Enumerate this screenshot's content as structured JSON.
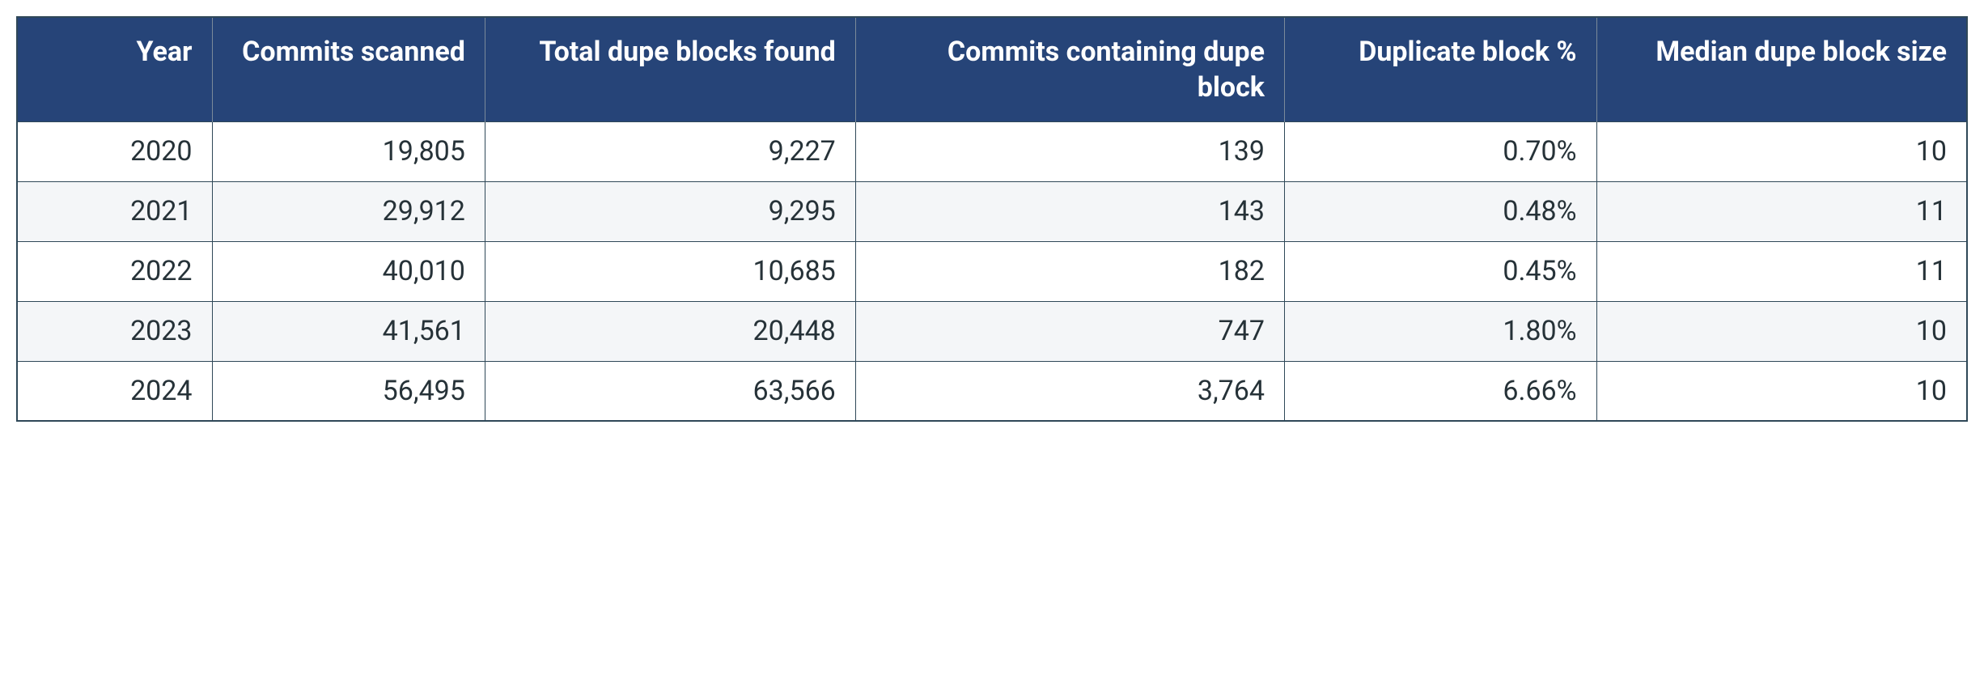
{
  "table": {
    "type": "table",
    "header_bg": "#264478",
    "header_text_color": "#ffffff",
    "header_fontsize": 34,
    "header_fontweight": 700,
    "body_text_color": "#263238",
    "body_fontsize": 34,
    "row_bg_odd": "#ffffff",
    "row_bg_even": "#f4f6f8",
    "border_color": "#2f4858",
    "header_divider_color": "#7b8a9a",
    "border_width": 2,
    "columns": [
      {
        "label": "Year",
        "width_pct": 10
      },
      {
        "label": "Commits scanned",
        "width_pct": 14
      },
      {
        "label": "Total dupe blocks found",
        "width_pct": 19
      },
      {
        "label": "Commits containing dupe block",
        "width_pct": 22
      },
      {
        "label": "Duplicate block %",
        "width_pct": 16
      },
      {
        "label": "Median dupe block size",
        "width_pct": 19
      }
    ],
    "rows": [
      [
        "2020",
        "19,805",
        "9,227",
        "139",
        "0.70%",
        "10"
      ],
      [
        "2021",
        "29,912",
        "9,295",
        "143",
        "0.48%",
        "11"
      ],
      [
        "2022",
        "40,010",
        "10,685",
        "182",
        "0.45%",
        "11"
      ],
      [
        "2023",
        "41,561",
        "20,448",
        "747",
        "1.80%",
        "10"
      ],
      [
        "2024",
        "56,495",
        "63,566",
        "3,764",
        "6.66%",
        "10"
      ]
    ]
  }
}
